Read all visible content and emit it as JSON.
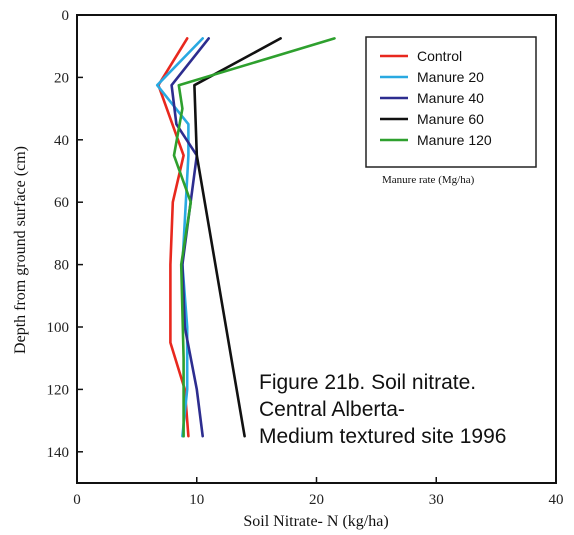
{
  "chart_data": {
    "type": "line",
    "orientation": "depth-profile",
    "xlabel": "Soil Nitrate- N (kg/ha)",
    "ylabel": "Depth from ground surface (cm)",
    "xlim": [
      0,
      40
    ],
    "ylim": [
      0,
      150
    ],
    "y_inverted": true,
    "x_ticks": [
      "0",
      "10",
      "20",
      "30",
      "40"
    ],
    "y_ticks": [
      "0",
      "20",
      "40",
      "60",
      "80",
      "100",
      "120",
      "140"
    ],
    "legend_title": "Manure rate (Mg/ha)",
    "legend_position": "top-right",
    "caption": [
      "Figure 21b.  Soil nitrate.",
      "Central  Alberta-",
      "Medium textured site 1996"
    ],
    "series": [
      {
        "name": "Control",
        "color": "#e8281e",
        "x": [
          9.2,
          6.8,
          8.9,
          8.0,
          7.8,
          7.8,
          9.0,
          9.3
        ],
        "y": [
          7.5,
          22.5,
          45,
          60,
          80,
          105,
          120,
          135
        ]
      },
      {
        "name": "Manure 20",
        "color": "#29a9e1",
        "x": [
          10.5,
          6.7,
          9.3,
          9.3,
          8.8,
          9.2,
          9.2,
          8.8
        ],
        "y": [
          7.5,
          22.5,
          35,
          45,
          80,
          100,
          120,
          135
        ]
      },
      {
        "name": "Manure 40",
        "color": "#2d2d8f",
        "x": [
          11.0,
          7.9,
          8.3,
          10.0,
          8.8,
          9.0,
          10.0,
          10.5
        ],
        "y": [
          7.5,
          22.5,
          35,
          45,
          80,
          100,
          120,
          135
        ]
      },
      {
        "name": "Manure 60",
        "color": "#111111",
        "x": [
          17.0,
          9.8,
          10.0,
          14.0
        ],
        "y": [
          7.5,
          22.5,
          45,
          135
        ]
      },
      {
        "name": "Manure 120",
        "color": "#2ea02e",
        "x": [
          21.5,
          8.5,
          8.8,
          8.1,
          9.5,
          8.7,
          8.9,
          8.9
        ],
        "y": [
          7.5,
          22.5,
          30,
          45,
          60,
          80,
          110,
          135
        ]
      }
    ]
  }
}
